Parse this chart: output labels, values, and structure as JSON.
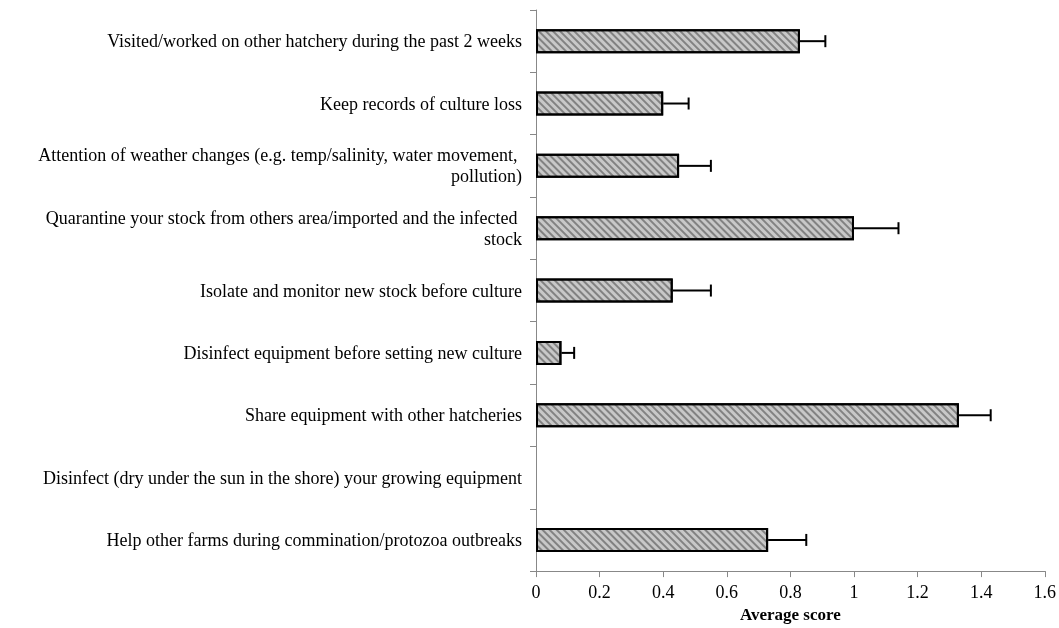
{
  "chart_data": {
    "type": "bar",
    "orientation": "horizontal",
    "xlabel": "Average score",
    "categories": [
      "Visited/worked on other hatchery during the past 2 weeks",
      "Keep records of culture loss",
      "Attention of weather changes (e.g. temp/salinity, water movement, pollution)",
      "Quarantine your stock from others area/imported and the infected stock",
      "Isolate and monitor new stock before culture",
      "Disinfect equipment before setting new culture",
      "Share equipment with other hatcheries",
      "Disinfect (dry under the sun in the shore) your growing equipment",
      "Help other farms during commination/protozoa outbreaks"
    ],
    "values": [
      0.83,
      0.4,
      0.45,
      1.0,
      0.43,
      0.08,
      1.33,
      0,
      0.73
    ],
    "errors": [
      [
        0.83,
        0.91
      ],
      [
        0.4,
        0.48
      ],
      [
        0.45,
        0.55
      ],
      [
        1.0,
        1.14
      ],
      [
        0.43,
        0.55
      ],
      [
        0.08,
        0.12
      ],
      [
        1.33,
        1.43
      ],
      null,
      [
        0.73,
        0.85
      ]
    ],
    "color": "#c8c8c8",
    "xlim": [
      0,
      1.6
    ],
    "xticks": [
      0,
      0.2,
      0.4,
      0.6,
      0.8,
      1,
      1.2,
      1.4,
      1.6
    ],
    "grid": false
  }
}
